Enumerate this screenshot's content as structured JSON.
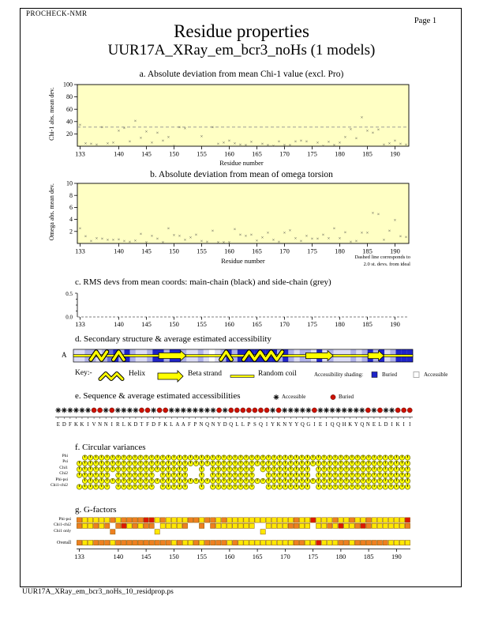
{
  "page": {
    "app": "PROCHECK-NMR",
    "page_label": "Page 1",
    "title": "Residue properties",
    "subtitle": "UUR17A_XRay_em_bcr3_noHs (1 models)",
    "footer": "UUR17A_XRay_em_bcr3_noHs_10_residprop.ps"
  },
  "xaxis": {
    "min": 133,
    "max": 192,
    "ticks": [
      133,
      140,
      145,
      150,
      155,
      160,
      165,
      170,
      175,
      180,
      185,
      190
    ]
  },
  "plots": {
    "a": {
      "title": "a. Absolute deviation from mean Chi-1 value (excl. Pro)",
      "ylabel": "Chi-1 abs. mean dev.",
      "xlabel": "Residue number"
    },
    "b": {
      "title": "b. Absolute deviation from mean of omega torsion",
      "ylabel": "Omega abs. mean dev.",
      "xlabel": "Residue number",
      "note1": "Dashed line corresponds to",
      "note2": "2.0 st. devs. from ideal"
    },
    "c": {
      "title": "c. RMS devs from mean coords: main-chain (black) and side-chain (grey)",
      "ytick_top": "0.5",
      "ytick_bottom": "0.0"
    }
  },
  "chart_data": [
    {
      "type": "scatter",
      "title": "a. Absolute deviation from mean Chi-1 value (excl. Pro)",
      "xlabel": "Residue number",
      "ylabel": "Chi-1 abs. mean dev.",
      "xlim": [
        133,
        193
      ],
      "ylim": [
        0,
        100
      ],
      "yticks": [
        20,
        40,
        60,
        80,
        100
      ],
      "dashed_line_y": 31,
      "points": [
        [
          133,
          35
        ],
        [
          134,
          5
        ],
        [
          135,
          4
        ],
        [
          136,
          3
        ],
        [
          137,
          31
        ],
        [
          138,
          5
        ],
        [
          139,
          6
        ],
        [
          140,
          25
        ],
        [
          141,
          30
        ],
        [
          142,
          8
        ],
        [
          143,
          41
        ],
        [
          144,
          14
        ],
        [
          145,
          24
        ],
        [
          146,
          6
        ],
        [
          147,
          22
        ],
        [
          148,
          9
        ],
        [
          149,
          15
        ],
        [
          150,
          1
        ],
        [
          151,
          31
        ],
        [
          152,
          29
        ],
        [
          155,
          16
        ],
        [
          157,
          31
        ],
        [
          158,
          4
        ],
        [
          159,
          6
        ],
        [
          160,
          9
        ],
        [
          161,
          5
        ],
        [
          162,
          3
        ],
        [
          163,
          2
        ],
        [
          164,
          7
        ],
        [
          166,
          4
        ],
        [
          167,
          2
        ],
        [
          168,
          1
        ],
        [
          169,
          8
        ],
        [
          170,
          2
        ],
        [
          171,
          2
        ],
        [
          172,
          8
        ],
        [
          173,
          9
        ],
        [
          174,
          8
        ],
        [
          176,
          6
        ],
        [
          177,
          1
        ],
        [
          178,
          7
        ],
        [
          179,
          2
        ],
        [
          180,
          6
        ],
        [
          181,
          15
        ],
        [
          182,
          28
        ],
        [
          183,
          13
        ],
        [
          184,
          47
        ],
        [
          185,
          25
        ],
        [
          186,
          22
        ],
        [
          187,
          27
        ],
        [
          188,
          3
        ],
        [
          189,
          5
        ],
        [
          190,
          9
        ],
        [
          191,
          4
        ],
        [
          192,
          3
        ]
      ]
    },
    {
      "type": "scatter",
      "title": "b. Absolute deviation from mean of omega torsion",
      "xlabel": "Residue number",
      "ylabel": "Omega abs. mean dev.",
      "xlim": [
        133,
        193
      ],
      "ylim": [
        0,
        10
      ],
      "yticks": [
        2,
        4,
        6,
        8,
        10
      ],
      "points": [
        [
          133,
          2.5
        ],
        [
          134,
          1.2
        ],
        [
          135,
          0.4
        ],
        [
          136,
          0.9
        ],
        [
          137,
          0.8
        ],
        [
          138,
          0.6
        ],
        [
          139,
          0.6
        ],
        [
          140,
          0.7
        ],
        [
          141,
          0.4
        ],
        [
          142,
          0.3
        ],
        [
          143,
          0.5
        ],
        [
          144,
          1.6
        ],
        [
          145,
          0.2
        ],
        [
          146,
          1.3
        ],
        [
          147,
          0.8
        ],
        [
          148,
          0.2
        ],
        [
          149,
          2.5
        ],
        [
          150,
          1.4
        ],
        [
          151,
          1.3
        ],
        [
          152,
          0.6
        ],
        [
          153,
          1.0
        ],
        [
          154,
          1.5
        ],
        [
          155,
          0.4
        ],
        [
          156,
          0.3
        ],
        [
          157,
          2.1
        ],
        [
          158,
          0.2
        ],
        [
          159,
          0.2
        ],
        [
          160,
          0.2
        ],
        [
          161,
          2.4
        ],
        [
          162,
          1.5
        ],
        [
          163,
          1.3
        ],
        [
          164,
          1.5
        ],
        [
          165,
          0.5
        ],
        [
          166,
          1.0
        ],
        [
          167,
          1.8
        ],
        [
          168,
          0.6
        ],
        [
          169,
          0.3
        ],
        [
          170,
          1.8
        ],
        [
          171,
          2.2
        ],
        [
          172,
          0.9
        ],
        [
          173,
          0.4
        ],
        [
          174,
          1.3
        ],
        [
          175,
          0.8
        ],
        [
          176,
          0.8
        ],
        [
          177,
          1.5
        ],
        [
          178,
          0.9
        ],
        [
          179,
          2.5
        ],
        [
          180,
          0.9
        ],
        [
          181,
          1.9
        ],
        [
          182,
          0.3
        ],
        [
          183,
          0.4
        ],
        [
          184,
          1.8
        ],
        [
          185,
          1.8
        ],
        [
          186,
          5.1
        ],
        [
          187,
          4.9
        ],
        [
          188,
          0.6
        ],
        [
          189,
          2.1
        ],
        [
          190,
          3.9
        ],
        [
          191,
          1.2
        ],
        [
          192,
          1.1
        ]
      ]
    },
    {
      "type": "scatter",
      "title": "c. RMS devs from mean coords: main-chain (black) and side-chain (grey)",
      "xlabel": "",
      "ylabel": "",
      "xlim": [
        133,
        193
      ],
      "ylim": [
        0,
        0.5
      ],
      "yticks": [
        0.0,
        0.5
      ],
      "points": []
    }
  ],
  "secondary_structure": {
    "title": "d. Secondary structure & average estimated accessibility",
    "row_label": "A",
    "segments": [
      {
        "type": "helix",
        "start": 136,
        "end": 138
      },
      {
        "type": "helix",
        "start": 140,
        "end": 141
      },
      {
        "type": "strand",
        "start": 148,
        "end": 152
      },
      {
        "type": "helix",
        "start": 159,
        "end": 160
      },
      {
        "type": "helix",
        "start": 163,
        "end": 169
      },
      {
        "type": "strand",
        "start": 174,
        "end": 178
      },
      {
        "type": "strand",
        "start": 185,
        "end": 187
      }
    ],
    "shades": [
      1,
      1,
      2,
      2,
      1,
      2,
      3,
      4,
      2,
      4,
      2,
      1,
      1,
      2,
      4,
      4,
      2,
      4,
      4,
      2,
      1,
      1,
      2,
      1,
      0,
      1,
      2,
      4,
      2,
      4,
      4,
      4,
      4,
      4,
      4,
      4,
      2,
      4,
      2,
      1,
      2,
      2,
      1,
      4,
      1,
      2,
      1,
      1,
      1,
      2,
      1,
      2,
      4,
      2,
      4,
      1,
      2,
      4,
      4,
      4
    ],
    "key": {
      "key_label": "Key:-",
      "helix_label": "Helix",
      "strand_label": "Beta strand",
      "coil_label": "Random coil",
      "shading_label": "Accessibility shading:",
      "buried_label": "Buried",
      "accessible_label": "Accessible"
    }
  },
  "sequence": {
    "title": "e. Sequence & average estimated accessibilities",
    "legend_accessible": "Accessible",
    "legend_buried": "Buried",
    "letters": "EDFKKIVNNIRLKDTFDFKLAAFPNQNYDQLLPSQIYKNYYQGIEIQQHKYQNELDIKII",
    "accessibility": "AAAAAABBABAAAABBABBAAAAAAAABABBBBBBBABAAAAABAAAAAAAABABAABBB"
  },
  "circular_variances": {
    "title": "f. Circular variances",
    "row_labels": [
      "Phi",
      "Psi",
      "Chi1",
      "Chi2",
      "Phi-psi",
      "Chi1-chi2"
    ],
    "missing": {
      "phi": [
        133
      ],
      "psi": [],
      "chi1": [
        153,
        154,
        156,
        165,
        175
      ],
      "chi2": [
        139,
        147,
        153,
        154,
        156,
        165,
        166,
        175
      ],
      "phi_psi": [
        133
      ],
      "chi1_chi2": [
        139,
        147,
        153,
        154,
        156,
        165,
        166,
        175
      ]
    }
  },
  "gfactors": {
    "title": "g. G-factors",
    "row_labels": [
      "Phi-psi",
      "Chi1-chi2",
      "Chi1 only"
    ],
    "overall_label": "Overall",
    "phi_psi": "oyyyyyoyoooorryoyyyyooyooyoyyyyyyyyyyyyoyyryyyoyyoyyoyyyyyyr",
    "chi1_chi2": "oyyoyo.oryoyoo.yyyyo..o.oyyyyyyy..yyyyooyy.yyoyryyoroyyyyyyo",
    "chi1_only": "......o.......y..................y..........................",
    "overall": "oyyoooyooooooooooyoyyoyooooyoyyyyyyyyyyooyyryyyooyooooooyyyyo"
  },
  "colors": {
    "plot_bg": "#FFFFC4",
    "marker": "#444444",
    "dashed_line": "#909090",
    "structure_yellow": "#FFFF00",
    "buried_blue": "#1F24C8",
    "buried_red": "#CC1100",
    "accessible_star": "#111111",
    "cv_yellow": "#FFFF00",
    "g_yellow": "#FFE800",
    "g_orange": "#EE8020",
    "g_red": "#DD1800",
    "shade_palette": [
      "#FFFFFF",
      "#DCDCF5",
      "#AEB0E8",
      "#6A6FD6",
      "#1F24C8"
    ]
  }
}
